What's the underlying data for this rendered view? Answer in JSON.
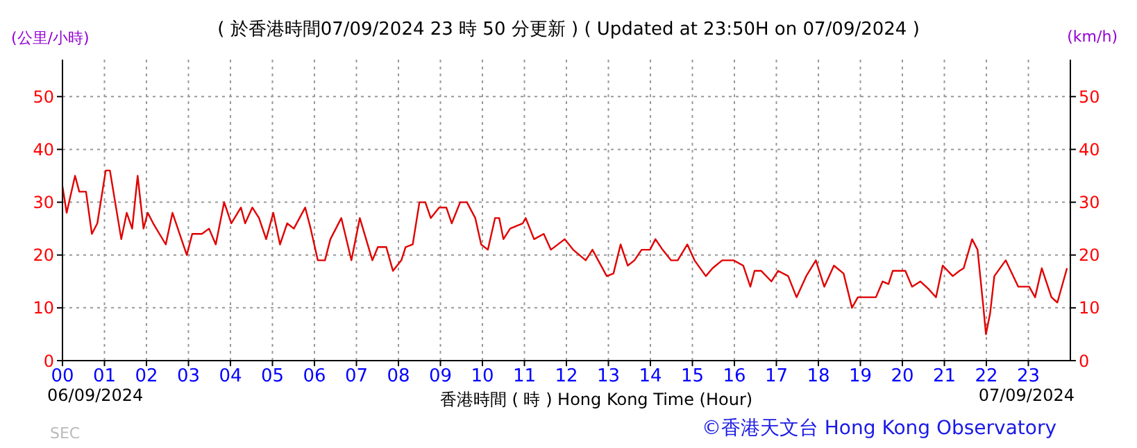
{
  "chart_data": {
    "type": "line",
    "title": "( 於香港時間07/09/2024 23 時 50 分更新 ) ( Updated at 23:50H on 07/09/2024 )",
    "ylabel": "(公里/小時)",
    "y2label": "(km/h)",
    "xlabel": "香港時間 ( 時 ) Hong Kong Time (Hour)",
    "annotations": [
      "06/09/2024",
      "07/09/2024",
      "©香港天文台 Hong Kong Observatory",
      "SEC"
    ],
    "xlim": [
      0,
      24
    ],
    "xticks": [
      {
        "value": 0,
        "label": "00"
      },
      {
        "value": 1,
        "label": "01"
      },
      {
        "value": 2,
        "label": "02"
      },
      {
        "value": 3,
        "label": "03"
      },
      {
        "value": 4,
        "label": "04"
      },
      {
        "value": 5,
        "label": "05"
      },
      {
        "value": 6,
        "label": "06"
      },
      {
        "value": 7,
        "label": "07"
      },
      {
        "value": 8,
        "label": "08"
      },
      {
        "value": 9,
        "label": "09"
      },
      {
        "value": 10,
        "label": "10"
      },
      {
        "value": 11,
        "label": "11"
      },
      {
        "value": 12,
        "label": "12"
      },
      {
        "value": 13,
        "label": "13"
      },
      {
        "value": 14,
        "label": "14"
      },
      {
        "value": 15,
        "label": "15"
      },
      {
        "value": 16,
        "label": "16"
      },
      {
        "value": 17,
        "label": "17"
      },
      {
        "value": 18,
        "label": "18"
      },
      {
        "value": 19,
        "label": "19"
      },
      {
        "value": 20,
        "label": "20"
      },
      {
        "value": 21,
        "label": "21"
      },
      {
        "value": 22,
        "label": "22"
      },
      {
        "value": 23,
        "label": "23"
      }
    ],
    "ylim": [
      0,
      57
    ],
    "yticks": [
      0,
      10,
      20,
      30,
      40,
      50
    ],
    "y2lim": [
      0,
      57
    ],
    "y2ticks": [
      0,
      10,
      20,
      30,
      40,
      50
    ],
    "grid": true,
    "line_style": "solid",
    "series": [
      {
        "color": "#e00000",
        "x": [
          0,
          0.1,
          0.3,
          0.4,
          0.56,
          0.7,
          0.83,
          1.03,
          1.13,
          1.4,
          1.53,
          1.66,
          1.79,
          1.93,
          2.03,
          2.16,
          2.46,
          2.62,
          2.79,
          2.96,
          3.09,
          3.32,
          3.49,
          3.65,
          3.85,
          4.02,
          4.25,
          4.35,
          4.52,
          4.68,
          4.85,
          5.02,
          5.18,
          5.35,
          5.51,
          5.78,
          5.91,
          6.08,
          6.25,
          6.38,
          6.64,
          6.88,
          7.08,
          7.38,
          7.51,
          7.71,
          7.87,
          8.07,
          8.17,
          8.34,
          8.5,
          8.64,
          8.77,
          8.97,
          9.14,
          9.27,
          9.47,
          9.63,
          9.83,
          9.97,
          10.13,
          10.3,
          10.4,
          10.5,
          10.66,
          10.96,
          11.03,
          11.23,
          11.46,
          11.63,
          11.96,
          12.16,
          12.46,
          12.62,
          12.96,
          13.12,
          13.29,
          13.46,
          13.62,
          13.79,
          13.99,
          14.12,
          14.29,
          14.49,
          14.65,
          14.88,
          15.05,
          15.32,
          15.48,
          15.71,
          15.98,
          16.21,
          16.38,
          16.48,
          16.64,
          16.88,
          17.04,
          17.28,
          17.48,
          17.71,
          17.94,
          18.14,
          18.37,
          18.6,
          18.8,
          18.94,
          19.37,
          19.53,
          19.67,
          19.77,
          20.07,
          20.23,
          20.43,
          20.63,
          20.8,
          20.96,
          21.2,
          21.36,
          21.46,
          21.66,
          21.79,
          21.93,
          21.99,
          22.09,
          22.19,
          22.46,
          22.76,
          23.02,
          23.16,
          23.32,
          23.55,
          23.69,
          23.92
        ],
        "values": [
          33,
          28,
          35,
          32,
          32,
          24,
          26,
          36,
          36,
          23,
          28,
          25,
          35,
          25,
          28,
          26,
          22,
          28,
          24,
          20,
          24,
          24,
          25,
          22,
          30,
          26,
          29,
          26,
          29,
          27,
          23,
          28,
          22,
          26,
          25,
          29,
          25,
          19,
          19,
          23,
          27,
          19,
          27,
          19,
          21.5,
          21.5,
          17,
          19,
          21.5,
          22,
          30,
          30,
          27,
          29,
          29,
          26,
          30,
          30,
          27,
          22,
          21,
          27,
          27,
          23,
          25,
          26,
          27,
          23,
          24,
          21,
          23,
          21,
          19,
          21,
          16,
          16.5,
          22,
          18,
          19,
          21,
          21,
          23,
          21,
          19,
          19,
          22,
          19,
          16,
          17.5,
          19,
          19,
          18,
          14,
          17,
          17,
          15,
          17,
          16,
          12,
          16,
          19,
          14,
          18,
          16.5,
          10,
          12,
          12,
          15,
          14.5,
          17,
          17,
          14,
          15,
          13.5,
          12,
          18,
          16,
          17,
          17.5,
          23,
          21,
          10,
          5,
          9,
          16,
          19,
          14,
          14,
          12,
          17.5,
          12,
          11,
          17.5
        ]
      }
    ]
  }
}
